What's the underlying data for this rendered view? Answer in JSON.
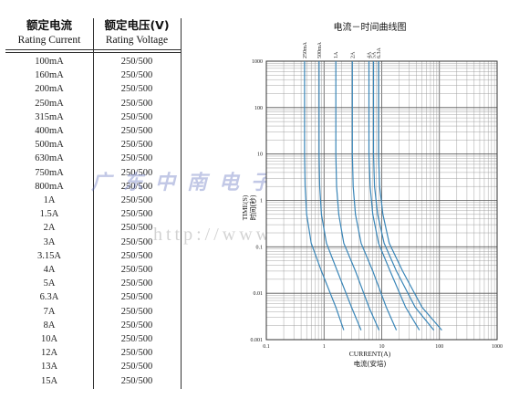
{
  "table": {
    "headers": [
      {
        "cn": "额定电流",
        "en": "Rating Current"
      },
      {
        "cn": "额定电压(V)",
        "en": "Rating Voltage"
      }
    ],
    "rows": [
      {
        "current": "100mA",
        "voltage": "250/500"
      },
      {
        "current": "160mA",
        "voltage": "250/500"
      },
      {
        "current": "200mA",
        "voltage": "250/500"
      },
      {
        "current": "250mA",
        "voltage": "250/500"
      },
      {
        "current": "315mA",
        "voltage": "250/500"
      },
      {
        "current": "400mA",
        "voltage": "250/500"
      },
      {
        "current": "500mA",
        "voltage": "250/500"
      },
      {
        "current": "630mA",
        "voltage": "250/500"
      },
      {
        "current": "750mA",
        "voltage": "250/500"
      },
      {
        "current": "800mA",
        "voltage": "250/500"
      },
      {
        "current": "1A",
        "voltage": "250/500"
      },
      {
        "current": "1.5A",
        "voltage": "250/500"
      },
      {
        "current": "2A",
        "voltage": "250/500"
      },
      {
        "current": "3A",
        "voltage": "250/500"
      },
      {
        "current": "3.15A",
        "voltage": "250/500"
      },
      {
        "current": "4A",
        "voltage": "250/500"
      },
      {
        "current": "5A",
        "voltage": "250/500"
      },
      {
        "current": "6.3A",
        "voltage": "250/500"
      },
      {
        "current": "7A",
        "voltage": "250/500"
      },
      {
        "current": "8A",
        "voltage": "250/500"
      },
      {
        "current": "10A",
        "voltage": "250/500"
      },
      {
        "current": "12A",
        "voltage": "250/500"
      },
      {
        "current": "13A",
        "voltage": "250/500"
      },
      {
        "current": "15A",
        "voltage": "250/500"
      }
    ]
  },
  "watermark": {
    "company": "广东中南电子电器有限公司",
    "url": "http://www.zndz.cc"
  },
  "chart_data": {
    "type": "line",
    "title": "电流－时间曲线图",
    "xlabel": "CURRENT(A)",
    "xlabel_cn": "电流(安培)",
    "ylabel": "TIME(S)",
    "ylabel_cn": "时间(秒)",
    "x_scale": "log",
    "y_scale": "log",
    "xlim": [
      0.1,
      1000
    ],
    "ylim": [
      0.001,
      1000
    ],
    "x_ticks": [
      "0.1",
      "1",
      "10",
      "100",
      "1000"
    ],
    "y_ticks": [
      "1000",
      "100",
      "10",
      "1",
      "0.1",
      "0.01",
      "0.001"
    ],
    "grid": true,
    "line_color": "#3a86b8",
    "series": [
      {
        "name": "250mA",
        "x": [
          0.46,
          0.46,
          0.47,
          0.5,
          0.6,
          0.9,
          1.6,
          2.2
        ],
        "y": [
          1000,
          10,
          2,
          0.5,
          0.12,
          0.03,
          0.005,
          0.0016
        ]
      },
      {
        "name": "500mA",
        "x": [
          0.82,
          0.82,
          0.84,
          0.9,
          1.1,
          1.7,
          3.0,
          4.4
        ],
        "y": [
          1000,
          10,
          2,
          0.5,
          0.12,
          0.03,
          0.005,
          0.0016
        ]
      },
      {
        "name": "1A",
        "x": [
          1.6,
          1.6,
          1.65,
          1.8,
          2.2,
          3.5,
          6.0,
          9.0
        ],
        "y": [
          1000,
          10,
          2,
          0.5,
          0.12,
          0.03,
          0.005,
          0.0016
        ]
      },
      {
        "name": "2A",
        "x": [
          3.1,
          3.1,
          3.2,
          3.5,
          4.4,
          7.0,
          12.0,
          18.0
        ],
        "y": [
          1000,
          10,
          2,
          0.5,
          0.12,
          0.03,
          0.005,
          0.0016
        ]
      },
      {
        "name": "4A",
        "x": [
          6.0,
          6.0,
          6.3,
          7.0,
          8.8,
          14.0,
          26.0,
          45.0
        ],
        "y": [
          1000,
          10,
          2,
          0.5,
          0.12,
          0.03,
          0.005,
          0.0016
        ]
      },
      {
        "name": "5A",
        "x": [
          7.2,
          7.2,
          7.5,
          8.5,
          11.0,
          18.0,
          38.0,
          80.0
        ],
        "y": [
          1000,
          10,
          2,
          0.5,
          0.12,
          0.03,
          0.005,
          0.0016
        ]
      },
      {
        "name": "6.3A",
        "x": [
          8.8,
          8.8,
          9.2,
          10.5,
          13.5,
          23.0,
          50.0,
          110.0
        ],
        "y": [
          1000,
          10,
          2,
          0.5,
          0.12,
          0.03,
          0.005,
          0.0016
        ]
      }
    ]
  }
}
